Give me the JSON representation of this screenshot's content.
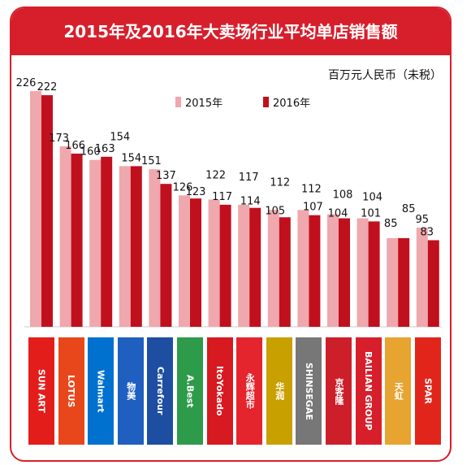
{
  "chart_data": {
    "type": "bar",
    "title": "2015年及2016年大卖场行业平均单店销售额",
    "unit_label": "百万元人民币（未税）",
    "ylim": [
      0,
      240
    ],
    "grid": false,
    "legend_position": "top",
    "series": [
      {
        "name": "2015年",
        "color": "#efa8ad",
        "values": [
          226,
          173,
          160,
          154,
          151,
          126,
          122,
          117,
          112,
          112,
          108,
          104,
          85,
          95
        ]
      },
      {
        "name": "2016年",
        "color": "#c0101e",
        "values": [
          222,
          166,
          163,
          154,
          137,
          123,
          117,
          114,
          105,
          107,
          104,
          101,
          85,
          83
        ]
      }
    ],
    "categories": [
      {
        "name": "SUN ART",
        "icon": "sun-art-logo",
        "color": "#e31d1a"
      },
      {
        "name": "LOTUS",
        "icon": "lotus-logo",
        "color": "#e8471c"
      },
      {
        "name": "Walmart",
        "icon": "walmart-spark-icon",
        "color": "#0071ce"
      },
      {
        "name": "物美",
        "icon": "wumart-logo",
        "color": "#1f5fbf"
      },
      {
        "name": "Carrefour",
        "icon": "carrefour-logo",
        "color": "#1e4ea2"
      },
      {
        "name": "A.Best",
        "icon": "abest-logo",
        "color": "#2d9b4a"
      },
      {
        "name": "ItoYokado",
        "icon": "ito-yokado-logo",
        "color": "#d71920"
      },
      {
        "name": "永辉超市",
        "icon": "yonghui-logo",
        "color": "#e4252e"
      },
      {
        "name": "华润",
        "icon": "huarun-logo",
        "color": "#c8a000"
      },
      {
        "name": "SHINSEGAE",
        "icon": "shinsegae-logo",
        "color": "#777777"
      },
      {
        "name": "京客隆",
        "icon": "jingkelong-logo",
        "color": "#cc1f2a"
      },
      {
        "name": "BAILIAN GROUP",
        "icon": "bailian-logo",
        "color": "#d71f2c"
      },
      {
        "name": "天虹",
        "icon": "tianhong-logo",
        "color": "#e7a431"
      },
      {
        "name": "SPAR",
        "icon": "spar-logo",
        "color": "#e1251b"
      }
    ]
  }
}
